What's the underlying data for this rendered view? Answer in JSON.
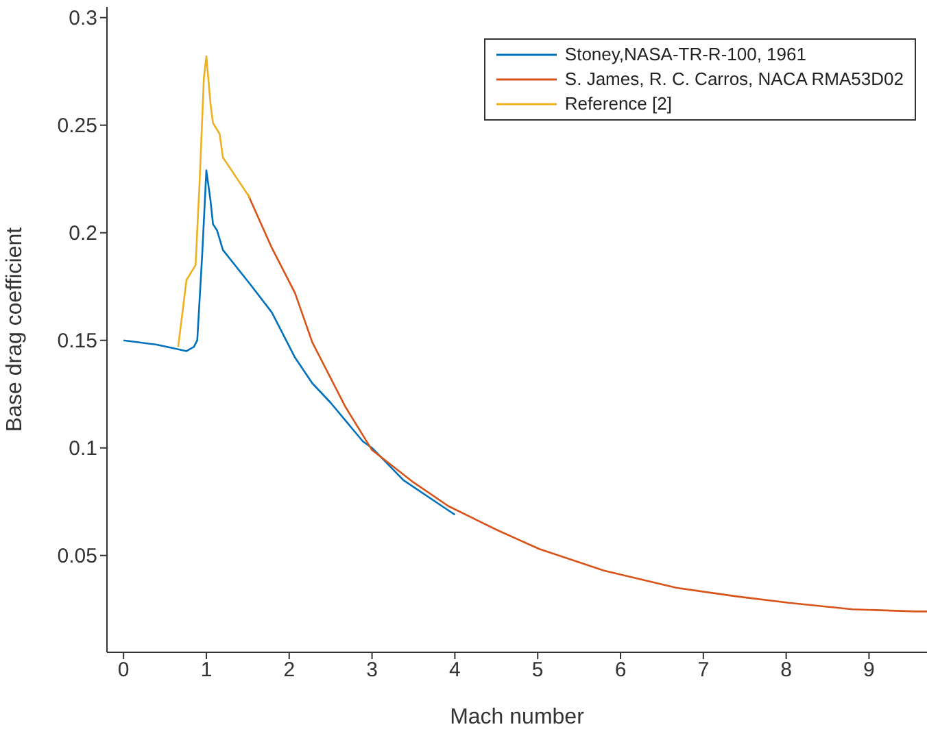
{
  "chart_data": {
    "type": "line",
    "xlabel": "Mach number",
    "ylabel": "Base drag coefficient",
    "xlim": [
      -0.2,
      9.7
    ],
    "xticks": [
      0,
      1,
      2,
      3,
      4,
      5,
      6,
      7,
      8,
      9
    ],
    "ylim": [
      0.005,
      0.305
    ],
    "yticks": [
      0.05,
      {
        "value": 0.1,
        "label": "0.1"
      },
      0.15,
      {
        "value": 0.2,
        "label": "0.2"
      },
      0.25,
      {
        "value": 0.3,
        "label": "0.3"
      }
    ],
    "legend": "top right",
    "marker": "none",
    "line_style": "solid",
    "series": [
      {
        "name": "Stoney,NASA-TR-R-100, 1961",
        "color": "#0072bd",
        "x": [
          0,
          0.4,
          0.76,
          0.85,
          0.89,
          0.95,
          1.0,
          1.05,
          1.08,
          1.13,
          1.2,
          1.53,
          1.79,
          2.07,
          2.28,
          2.5,
          2.89,
          3.0,
          3.38,
          3.92,
          4.0
        ],
        "values": [
          0.15,
          0.148,
          0.145,
          0.147,
          0.15,
          0.19,
          0.229,
          0.215,
          0.204,
          0.201,
          0.192,
          0.176,
          0.163,
          0.142,
          0.13,
          0.121,
          0.103,
          0.1,
          0.085,
          0.071,
          0.069
        ]
      },
      {
        "name": "S. James, R. C. Carros, NACA RMA53D02",
        "color": "#d95319",
        "x": [
          1.5,
          1.79,
          2.07,
          2.28,
          2.68,
          3.0,
          3.5,
          3.92,
          4.5,
          5.02,
          5.8,
          6.67,
          7.4,
          8.03,
          8.8,
          9.56,
          9.7
        ],
        "values": [
          0.218,
          0.193,
          0.172,
          0.149,
          0.119,
          0.099,
          0.084,
          0.073,
          0.062,
          0.053,
          0.043,
          0.035,
          0.031,
          0.028,
          0.025,
          0.024,
          0.024
        ]
      },
      {
        "name": "Reference [2]",
        "color": "#edb120",
        "x": [
          0.66,
          0.76,
          0.87,
          0.92,
          0.97,
          1.0,
          1.05,
          1.08,
          1.16,
          1.2,
          1.53
        ],
        "values": [
          0.147,
          0.178,
          0.185,
          0.225,
          0.272,
          0.282,
          0.26,
          0.251,
          0.246,
          0.235,
          0.216
        ]
      }
    ]
  }
}
